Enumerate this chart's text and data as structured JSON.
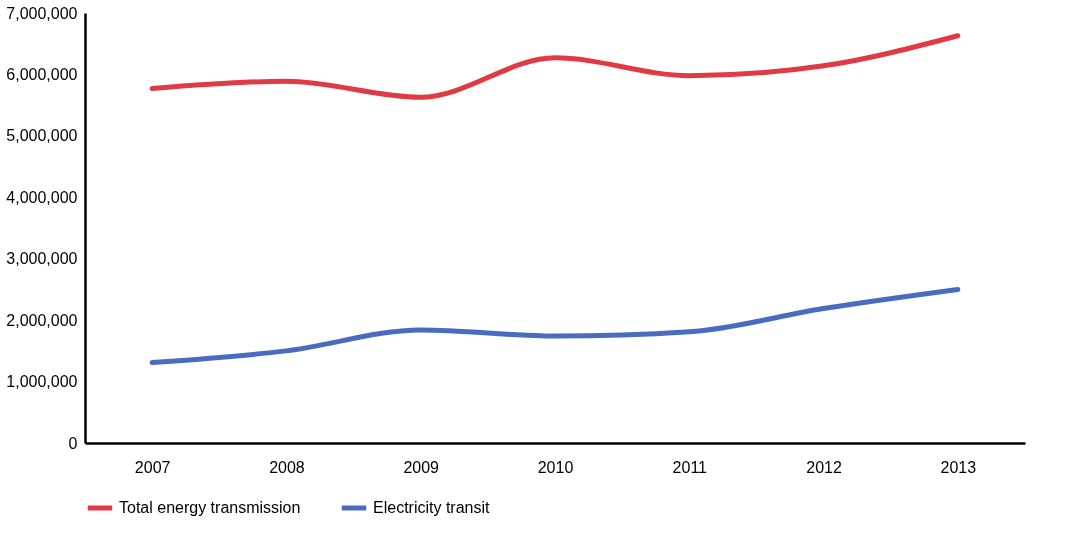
{
  "chart_data": {
    "type": "line",
    "categories": [
      "2007",
      "2008",
      "2009",
      "2010",
      "2011",
      "2012",
      "2013"
    ],
    "series": [
      {
        "name": "Total energy transmission",
        "color": "#e03a45",
        "values": [
          5770000,
          5890000,
          5630000,
          6270000,
          5980000,
          6140000,
          6630000
        ]
      },
      {
        "name": "Electricity transit",
        "color": "#4a6cc0",
        "values": [
          1310000,
          1500000,
          1840000,
          1740000,
          1810000,
          2190000,
          2500000
        ]
      }
    ],
    "ylim": [
      0,
      7000000
    ],
    "yticks": [
      0,
      {
        "value": 1000000,
        "label": "1,000,000"
      },
      {
        "value": 2000000,
        "label": "2,000,000"
      },
      {
        "value": 3000000,
        "label": "3,000,000"
      },
      {
        "value": 4000000,
        "label": "4,000,000"
      },
      {
        "value": 5000000,
        "label": "5,000,000"
      },
      {
        "value": 6000000,
        "label": "6,000,000"
      },
      {
        "value": 7000000,
        "label": "7,000,000"
      }
    ],
    "grid": false,
    "legend": "bottom",
    "marker": "none",
    "line_style": "solid"
  }
}
